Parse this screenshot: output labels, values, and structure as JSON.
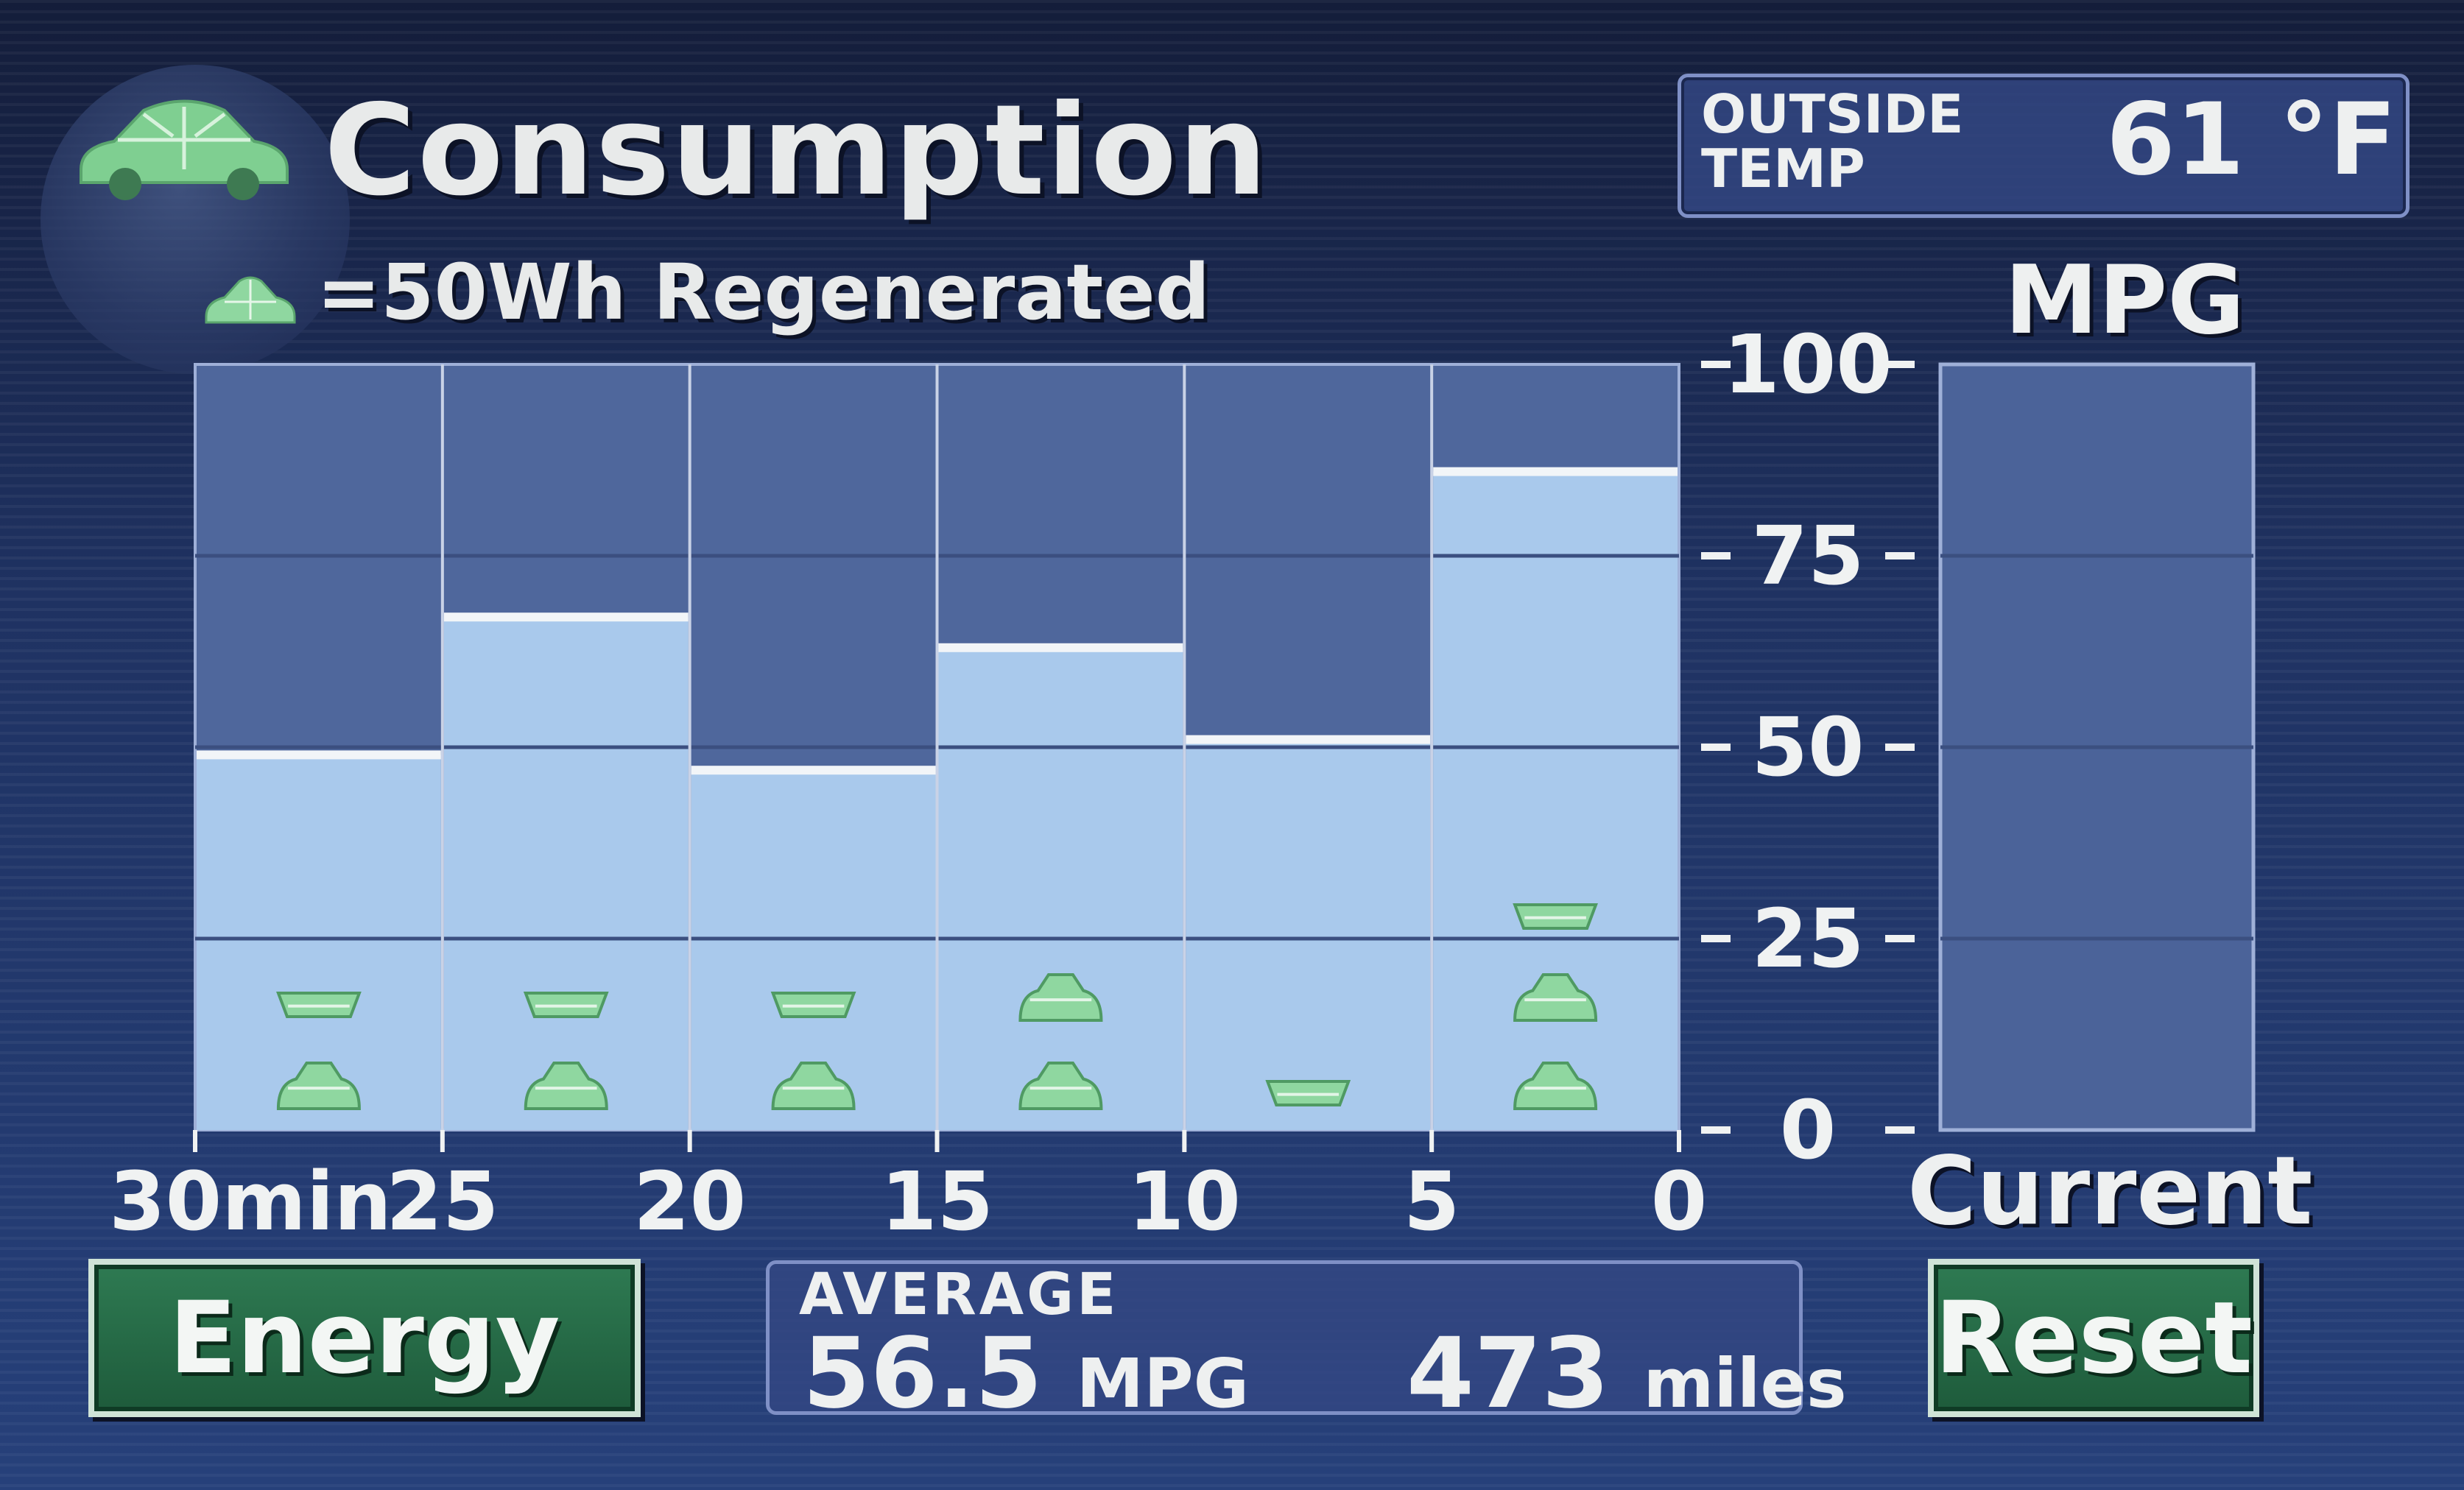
{
  "header": {
    "title": "Consumption",
    "legend_text": "=50Wh Regenerated",
    "car_icon": "car-leaf-icon",
    "leaf_icon": "leaf-icon"
  },
  "outside_temp": {
    "label": "OUTSIDE\nTEMP",
    "value": "61 °F"
  },
  "mpg_panel": {
    "header": "MPG",
    "current_label": "Current",
    "current_value": 0
  },
  "chart_data": {
    "type": "bar",
    "categories": [
      "30min-25",
      "25-20",
      "20-15",
      "15-10",
      "10-5",
      "5-0"
    ],
    "values": [
      49,
      67,
      47,
      63,
      51,
      86
    ],
    "regen_symbols": [
      1.5,
      1.5,
      1.5,
      2,
      0.5,
      2.5
    ],
    "ylim": [
      0,
      100
    ],
    "y_ticks": [
      "0",
      "25",
      "50",
      "75",
      "100"
    ],
    "x_ticks": [
      "30min",
      "25",
      "20",
      "15",
      "10",
      "5",
      "0"
    ],
    "grid": true
  },
  "average": {
    "label": "AVERAGE",
    "mpg_value": "56.5",
    "mpg_unit": "MPG",
    "distance": "473",
    "distance_unit": "miles"
  },
  "buttons": {
    "energy": "Energy",
    "reset": "Reset"
  },
  "colors": {
    "bar_fill": "#a9c9ec",
    "plot_bg": "#4f679c",
    "leaf": "#8fd7a0",
    "button": "#1e5b3b"
  }
}
